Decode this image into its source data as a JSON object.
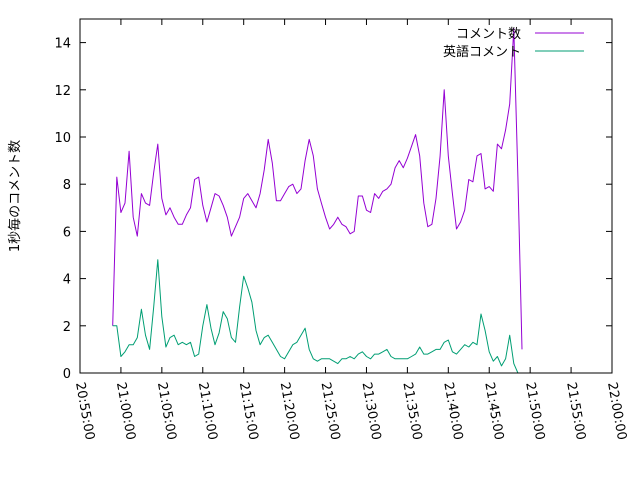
{
  "chart_data": {
    "type": "line",
    "title": "",
    "xlabel": "",
    "ylabel": "1秒毎のコメント数",
    "xlim": [
      "20:55:00",
      "22:00:00"
    ],
    "ylim": [
      0,
      15
    ],
    "x_ticks": [
      "20:55:00",
      "21:00:00",
      "21:05:00",
      "21:10:00",
      "21:15:00",
      "21:20:00",
      "21:25:00",
      "21:30:00",
      "21:35:00",
      "21:40:00",
      "21:45:00",
      "21:50:00",
      "21:55:00",
      "22:00:00"
    ],
    "y_ticks": [
      "0",
      "2",
      "4",
      "6",
      "8",
      "10",
      "12",
      "14"
    ],
    "grid": false,
    "legend_position": "top-right",
    "x_interval_seconds": 30,
    "x_start": "20:59:00",
    "series": [
      {
        "name": "コメント数",
        "color": "#9400d3",
        "values": [
          2.0,
          8.3,
          6.8,
          7.2,
          9.4,
          6.6,
          5.8,
          7.6,
          7.2,
          7.1,
          8.5,
          9.7,
          7.4,
          6.7,
          7.0,
          6.6,
          6.3,
          6.3,
          6.7,
          7.0,
          8.2,
          8.3,
          7.1,
          6.4,
          7.0,
          7.6,
          7.5,
          7.1,
          6.6,
          5.8,
          6.2,
          6.6,
          7.4,
          7.6,
          7.3,
          7.0,
          7.6,
          8.6,
          9.9,
          8.9,
          7.3,
          7.3,
          7.6,
          7.9,
          8.0,
          7.6,
          7.8,
          9.0,
          9.9,
          9.2,
          7.8,
          7.2,
          6.6,
          6.1,
          6.3,
          6.6,
          6.3,
          6.2,
          5.9,
          6.0,
          7.5,
          7.5,
          6.9,
          6.8,
          7.6,
          7.4,
          7.7,
          7.8,
          8.0,
          8.7,
          9.0,
          8.7,
          9.1,
          9.6,
          10.1,
          9.2,
          7.2,
          6.2,
          6.3,
          7.4,
          9.2,
          12.0,
          9.2,
          7.6,
          6.1,
          6.4,
          6.9,
          8.2,
          8.1,
          9.2,
          9.3,
          7.8,
          7.9,
          7.7,
          9.7,
          9.5,
          10.3,
          11.4,
          14.6,
          8.3,
          1.0
        ]
      },
      {
        "name": "英語コメント",
        "color": "#009e73",
        "values": [
          2.0,
          2.0,
          0.7,
          0.9,
          1.2,
          1.2,
          1.5,
          2.7,
          1.6,
          1.0,
          2.8,
          4.8,
          2.4,
          1.1,
          1.5,
          1.6,
          1.2,
          1.3,
          1.2,
          1.3,
          0.7,
          0.8,
          2.0,
          2.9,
          1.9,
          1.2,
          1.7,
          2.6,
          2.3,
          1.5,
          1.3,
          2.8,
          4.1,
          3.6,
          3.0,
          1.8,
          1.2,
          1.5,
          1.6,
          1.3,
          1.0,
          0.7,
          0.6,
          0.9,
          1.2,
          1.3,
          1.6,
          1.9,
          1.0,
          0.6,
          0.5,
          0.6,
          0.6,
          0.6,
          0.5,
          0.4,
          0.6,
          0.6,
          0.7,
          0.6,
          0.8,
          0.9,
          0.7,
          0.6,
          0.8,
          0.8,
          0.9,
          1.0,
          0.7,
          0.6,
          0.6,
          0.6,
          0.6,
          0.7,
          0.8,
          1.1,
          0.8,
          0.8,
          0.9,
          1.0,
          1.0,
          1.3,
          1.4,
          0.9,
          0.8,
          1.0,
          1.2,
          1.1,
          1.3,
          1.2,
          2.5,
          1.8,
          0.9,
          0.5,
          0.7,
          0.3,
          0.6,
          1.6,
          0.4,
          0.0,
          0.0
        ]
      }
    ]
  }
}
